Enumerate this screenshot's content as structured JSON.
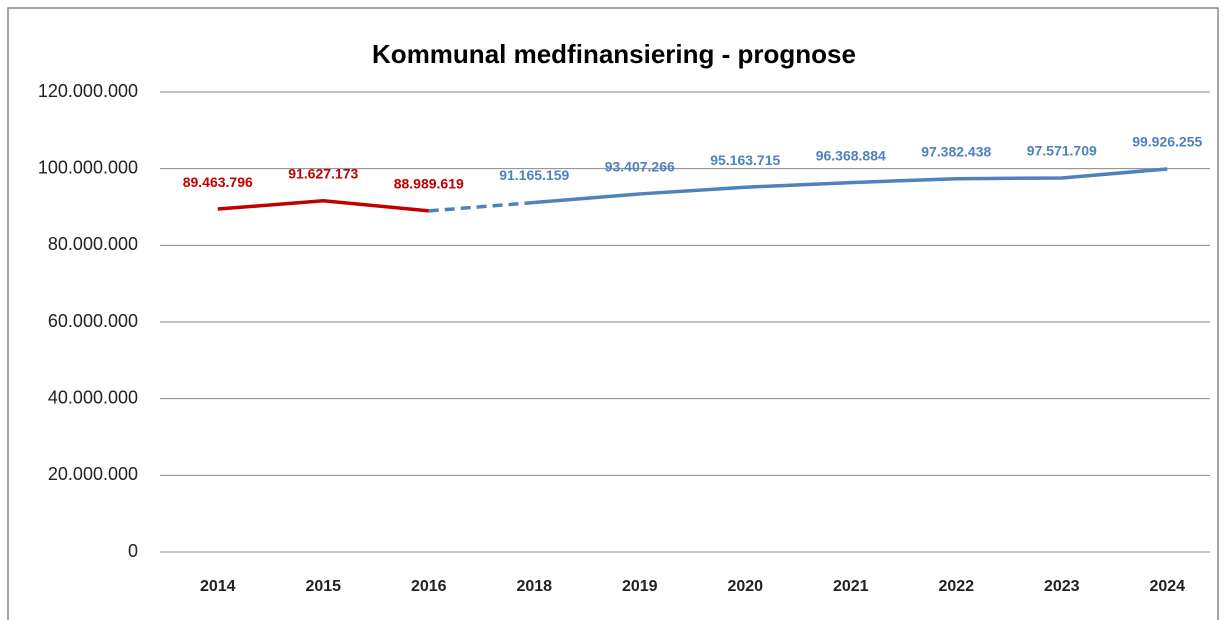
{
  "chart_data": {
    "type": "line",
    "title": "Kommunal medfinansiering - prognose",
    "categories": [
      "2014",
      "2015",
      "2016",
      "2018",
      "2019",
      "2020",
      "2021",
      "2022",
      "2023",
      "2024"
    ],
    "series": [
      {
        "color": "#c00000",
        "values": [
          89463796,
          91627173,
          88989619,
          null,
          null,
          null,
          null,
          null,
          null,
          null
        ],
        "value_labels": [
          "89.463.796",
          "91.627.173",
          "88.989.619",
          null,
          null,
          null,
          null,
          null,
          null,
          null
        ]
      },
      {
        "color": "#4f81bd",
        "dashed_segments": [
          2
        ],
        "values": [
          null,
          null,
          88989619,
          91165159,
          93407266,
          95163715,
          96368884,
          97382438,
          97571709,
          99926255
        ],
        "value_labels": [
          null,
          null,
          null,
          "91.165.159",
          "93.407.266",
          "95.163.715",
          "96.368.884",
          "97.382.438",
          "97.571.709",
          "99.926.255"
        ]
      }
    ],
    "ylim": [
      0,
      120000000
    ],
    "yticks": [
      0,
      {
        "value": 20000000,
        "label": "20.000.000"
      },
      {
        "value": 40000000,
        "label": "40.000.000"
      },
      {
        "value": 60000000,
        "label": "60.000.000"
      },
      {
        "value": 80000000,
        "label": "80.000.000"
      },
      {
        "value": 100000000,
        "label": "100.000.000"
      },
      {
        "value": 120000000,
        "label": "120.000.000"
      }
    ],
    "grid": true
  }
}
